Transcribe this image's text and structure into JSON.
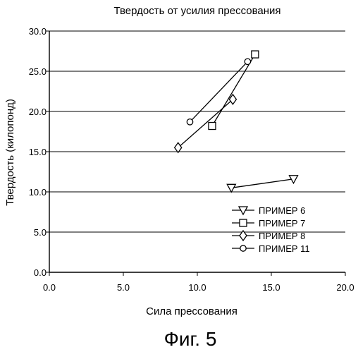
{
  "chart_data": {
    "type": "line",
    "title": "Твердость от усилия прессования",
    "xlabel": "Сила прессования",
    "ylabel": "Твердость (килопонд)",
    "xlim": [
      0,
      20
    ],
    "ylim": [
      0,
      30
    ],
    "xticks": [
      "0.0",
      "5.0",
      "10.0",
      "15.0",
      "20.0"
    ],
    "yticks": [
      "0.0",
      "5.0",
      "10.0",
      "15.0",
      "20.0",
      "25.0",
      "30.0"
    ],
    "grid": "horizontal",
    "legend_position": "bottom-right",
    "series": [
      {
        "name": "ПРИМЕР 6",
        "marker": "triangle-down",
        "points": [
          [
            12.3,
            10.5
          ],
          [
            16.5,
            11.6
          ]
        ]
      },
      {
        "name": "ПРИМЕР 7",
        "marker": "square",
        "points": [
          [
            11.0,
            18.2
          ],
          [
            13.9,
            27.1
          ]
        ]
      },
      {
        "name": "ПРИМЕР 8",
        "marker": "diamond",
        "points": [
          [
            8.7,
            15.5
          ],
          [
            12.4,
            21.5
          ]
        ]
      },
      {
        "name": "ПРИМЕР 11",
        "marker": "circle",
        "points": [
          [
            9.5,
            18.7
          ],
          [
            13.4,
            26.2
          ]
        ]
      }
    ]
  },
  "caption": "Фиг. 5"
}
